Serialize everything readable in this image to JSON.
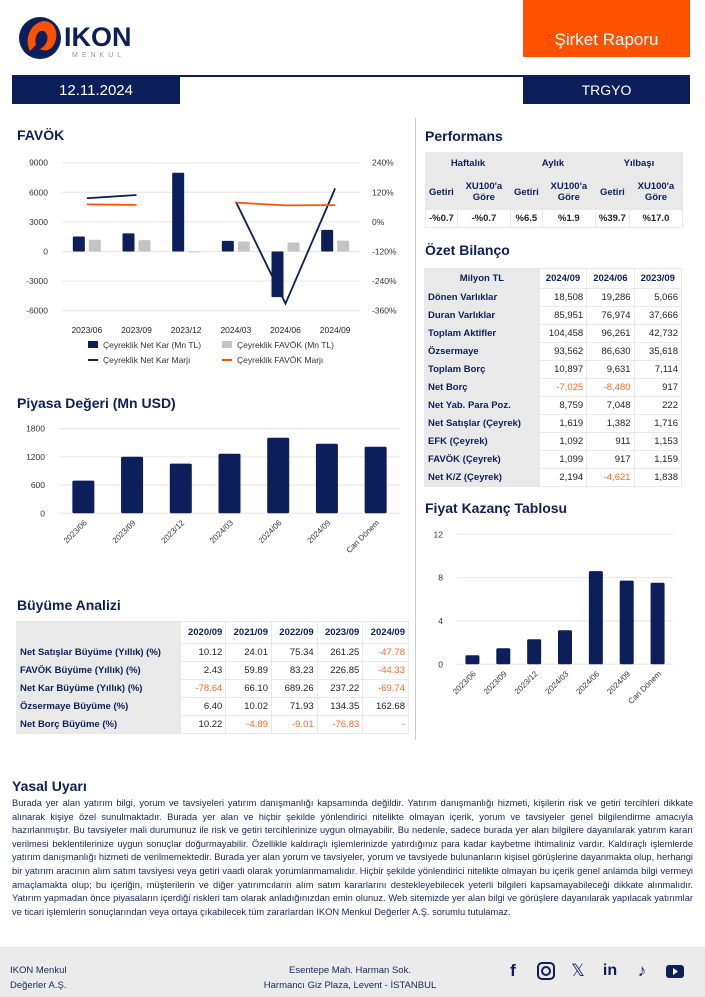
{
  "header": {
    "brand": "IKON",
    "brand_sub": "MENKUL",
    "report_type": "Şirket Raporu",
    "date": "12.11.2024",
    "ticker": "TRGYO",
    "accent": "#ff5200",
    "navy": "#0c1f5a"
  },
  "sections": {
    "favok": "FAVÖK",
    "piyasa": "Piyasa Değeri (Mn USD)",
    "buyume": "Büyüme Analizi",
    "performans": "Performans",
    "bilanco": "Özet Bilanço",
    "fk": "Fiyat Kazanç Tablosu"
  },
  "performans": {
    "periods": [
      "Haftalık",
      "Aylık",
      "Yılbaşı"
    ],
    "subheaders": [
      "Getiri",
      "XU100'a Göre",
      "Getiri",
      "XU100'a Göre",
      "Getiri",
      "XU100'a Göre"
    ],
    "values": [
      "-%0.7",
      "-%0.7",
      "%6.5",
      "%1.9",
      "%39.7",
      "%17.0"
    ]
  },
  "bilanco": {
    "headers": [
      "Milyon TL",
      "2024/09",
      "2024/06",
      "2023/09"
    ],
    "rows": [
      [
        "Dönen Varlıklar",
        "18,508",
        "19,286",
        "5,066"
      ],
      [
        "Duran Varlıklar",
        "85,951",
        "76,974",
        "37,666"
      ],
      [
        "Toplam Aktifler",
        "104,458",
        "96,261",
        "42,732"
      ],
      [
        "Özsermaye",
        "93,562",
        "86,630",
        "35,618"
      ],
      [
        "Toplam Borç",
        "10,897",
        "9,631",
        "7,114"
      ],
      [
        "Net Borç",
        "-7,025",
        "-8,480",
        "917"
      ],
      [
        "Net Yab. Para Poz.",
        "8,759",
        "7,048",
        "222"
      ],
      [
        "Net Satışlar (Çeyrek)",
        "1,619",
        "1,382",
        "1,716"
      ],
      [
        "EFK (Çeyrek)",
        "1,092",
        "911",
        "1,153"
      ],
      [
        "FAVÖK (Çeyrek)",
        "1,099",
        "917",
        "1,159"
      ],
      [
        "Net K/Z (Çeyrek)",
        "2,194",
        "-4,621",
        "1,838"
      ]
    ]
  },
  "buyume": {
    "headers": [
      "",
      "2020/09",
      "2021/09",
      "2022/09",
      "2023/09",
      "2024/09"
    ],
    "rows": [
      [
        "Net Satışlar Büyüme (Yıllık) (%)",
        "10.12",
        "24.01",
        "75.34",
        "261.25",
        "-47.78"
      ],
      [
        "FAVÖK Büyüme (Yıllık) (%)",
        "2.43",
        "59.89",
        "83.23",
        "226.85",
        "-44.33"
      ],
      [
        "Net Kar Büyüme (Yıllık) (%)",
        "-78.64",
        "66.10",
        "689.26",
        "237.22",
        "-69.74"
      ],
      [
        "Özsermaye Büyüme (%)",
        "6.40",
        "10.02",
        "71.93",
        "134.35",
        "162.68"
      ],
      [
        "Net Borç Büyüme (%)",
        "10.22",
        "-4.89",
        "-9.01",
        "-76.83",
        "-"
      ]
    ]
  },
  "chart_data": [
    {
      "type": "bar+line",
      "categories": [
        "2023/06",
        "2023/09",
        "2023/12",
        "2024/03",
        "2024/06",
        "2024/09"
      ],
      "ylim": [
        -6000,
        9000
      ],
      "yticks": [
        9000,
        6000,
        3000,
        0,
        -3000,
        -6000
      ],
      "y2lim": [
        -360,
        240
      ],
      "y2ticks": [
        "240%",
        "120%",
        "0%",
        "-120%",
        "-240%",
        "-360%"
      ],
      "series": [
        {
          "name": "Çeyreklik Net Kar (Mn TL)",
          "kind": "bar",
          "color": "#0c1f5a",
          "values": [
            1520,
            1838,
            7980,
            1080,
            -4621,
            2194
          ]
        },
        {
          "name": "Çeyreklik FAVÖK (Mn TL)",
          "kind": "bar",
          "color": "#c4c4c4",
          "values": [
            1190,
            1159,
            -80,
            1000,
            917,
            1099
          ]
        },
        {
          "name": "Çeyreklik Net Kar Marjı",
          "kind": "line",
          "axis": "right",
          "color": "#0c1f5a",
          "values": [
            96,
            109,
            null,
            82,
            -331,
            136
          ]
        },
        {
          "name": "Çeyreklik FAVÖK Marjı",
          "kind": "line",
          "axis": "right",
          "color": "#ff5200",
          "values": [
            71,
            69,
            null,
            78,
            67,
            68
          ]
        }
      ],
      "grid": true,
      "legend": "bottom"
    },
    {
      "type": "bar",
      "categories": [
        "2023/06",
        "2023/09",
        "2023/12",
        "2024/03",
        "2024/06",
        "2024/09",
        "Cari Dönem"
      ],
      "values": [
        694,
        1204,
        1056,
        1268,
        1608,
        1481,
        1417
      ],
      "ylim": [
        0,
        1800
      ],
      "yticks": [
        1800,
        1200,
        600,
        0
      ],
      "grid": true,
      "color": "#0c1f5a"
    },
    {
      "type": "bar",
      "categories": [
        "2023/06",
        "2023/09",
        "2023/12",
        "2024/03",
        "2024/06",
        "2024/09",
        "Cari Dönem"
      ],
      "values": [
        0.83,
        1.48,
        2.31,
        3.14,
        8.6,
        7.72,
        7.53
      ],
      "ylim": [
        0,
        12
      ],
      "yticks": [
        12,
        8,
        4,
        0
      ],
      "grid": true,
      "color": "#0c1f5a"
    }
  ],
  "disclaimer": {
    "title": "Yasal Uyarı",
    "text": "Burada yer alan yatırım bilgi, yorum ve tavsiyeleri yatırım danışmanlığı kapsamında değildir. Yatırım danışmanlığı hizmeti, kişilerin risk ve getiri tercihleri dikkate alınarak kişiye özel sunulmaktadır. Burada yer alan ve hiçbir şekilde yönlendirici nitelikte olmayan içerik, yorum ve tavsiyeler genel bilgilendirme amacıyla hazırlanmıştır. Bu tavsiyeler mali durumunuz ile risk ve getiri tercihlerinize uygun olmayabilir. Bu nedenle, sadece burada yer alan bilgilere dayanılarak yatırım kararı verilmesi beklentilerinize uygun sonuçlar doğurmayabilir. Özellikle kaldıraçlı işlemlerinizde yatırdığınız para kadar kaybetme ihtimaliniz vardır. Kaldıraçlı işlemlerde yatırım danışmanlığı hizmeti de verilmemektedir. Burada yer alan yorum ve tavsiyeler, yorum ve tavsiyede bulunanların kişisel görüşlerine dayanmakta olup, herhangi bir yatırım aracının alım satım tavsiyesi veya getiri vaadi olarak yorumlanmamalıdır. Hiçbir şekilde yönlendirici nitelikte olmayan bu içerik genel anlamda bilgi vermeyi amaçlamakta olup; bu içeriğin, müşterilerin ve diğer yatırımcıların alım satım kararlarını destekleyebilecek yeterli bilgileri kapsamayabileceği dikkate alınmalıdır. Yatırım yapmadan önce piyasaların içerdiği riskleri tam olarak anladığınızdan emin olunuz. Web sitemizde yer alan bilgi ve görüşlere dayanılarak yapılacak yatırımlar ve ticari işlemlerin sonuçlarından veya ortaya çıkabilecek tüm zararlardan IKON Menkul Değerler A.Ş. sorumlu tutulamaz."
  },
  "footer": {
    "company_line1": "IKON Menkul",
    "company_line2": "Değerler A.Ş.",
    "address_line1": "Esentepe Mah. Harman Sok.",
    "address_line2": "Harmancı Giz Plaza, Levent - İSTANBUL",
    "social": [
      "facebook-icon",
      "instagram-icon",
      "x-icon",
      "linkedin-icon",
      "tiktok-icon",
      "youtube-icon"
    ]
  }
}
